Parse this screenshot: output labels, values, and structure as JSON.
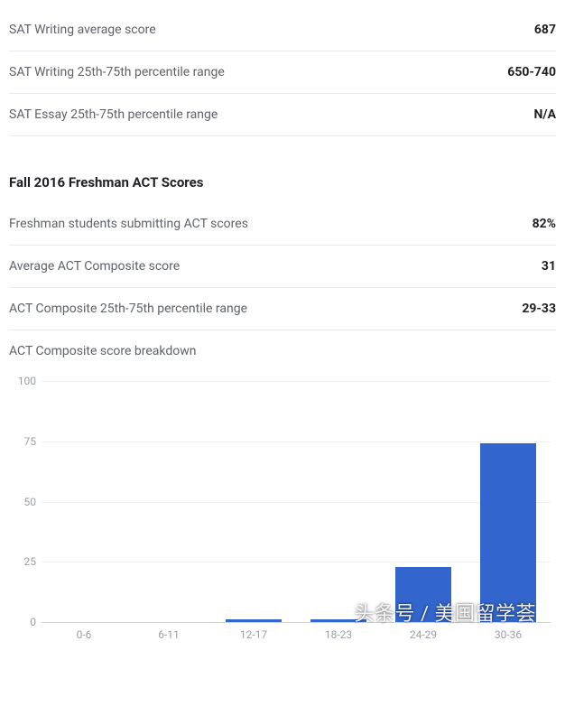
{
  "sat_rows": [
    {
      "label": "SAT Writing average score",
      "value": "687"
    },
    {
      "label": "SAT Writing 25th-75th percentile range",
      "value": "650-740"
    },
    {
      "label": "SAT Essay 25th-75th percentile range",
      "value": "N/A"
    }
  ],
  "act_section_title": "Fall 2016 Freshman ACT Scores",
  "act_rows": [
    {
      "label": "Freshman students submitting ACT scores",
      "value": "82%"
    },
    {
      "label": "Average ACT Composite score",
      "value": "31"
    },
    {
      "label": "ACT Composite 25th-75th percentile range",
      "value": "29-33"
    },
    {
      "label": "ACT Composite score breakdown",
      "value": ""
    }
  ],
  "chart": {
    "type": "bar",
    "categories": [
      "0-6",
      "6-11",
      "12-17",
      "18-23",
      "24-29",
      "30-36"
    ],
    "values": [
      0,
      0,
      1,
      1,
      23,
      74
    ],
    "ylim": [
      0,
      100
    ],
    "yticks": [
      0,
      25,
      50,
      75,
      100
    ],
    "bar_color": "#3366cc",
    "grid_color": "#eceff1",
    "axis_color": "#d0d0d0",
    "tick_font_color": "#9aa0a6",
    "tick_fontsize": 12,
    "background_color": "#ffffff",
    "bar_width_ratio": 0.66
  },
  "watermark": "头条号 / 美国留学荟",
  "colors": {
    "text_primary": "#202124",
    "text_secondary": "#5f6368",
    "divider": "#e8eaed"
  }
}
